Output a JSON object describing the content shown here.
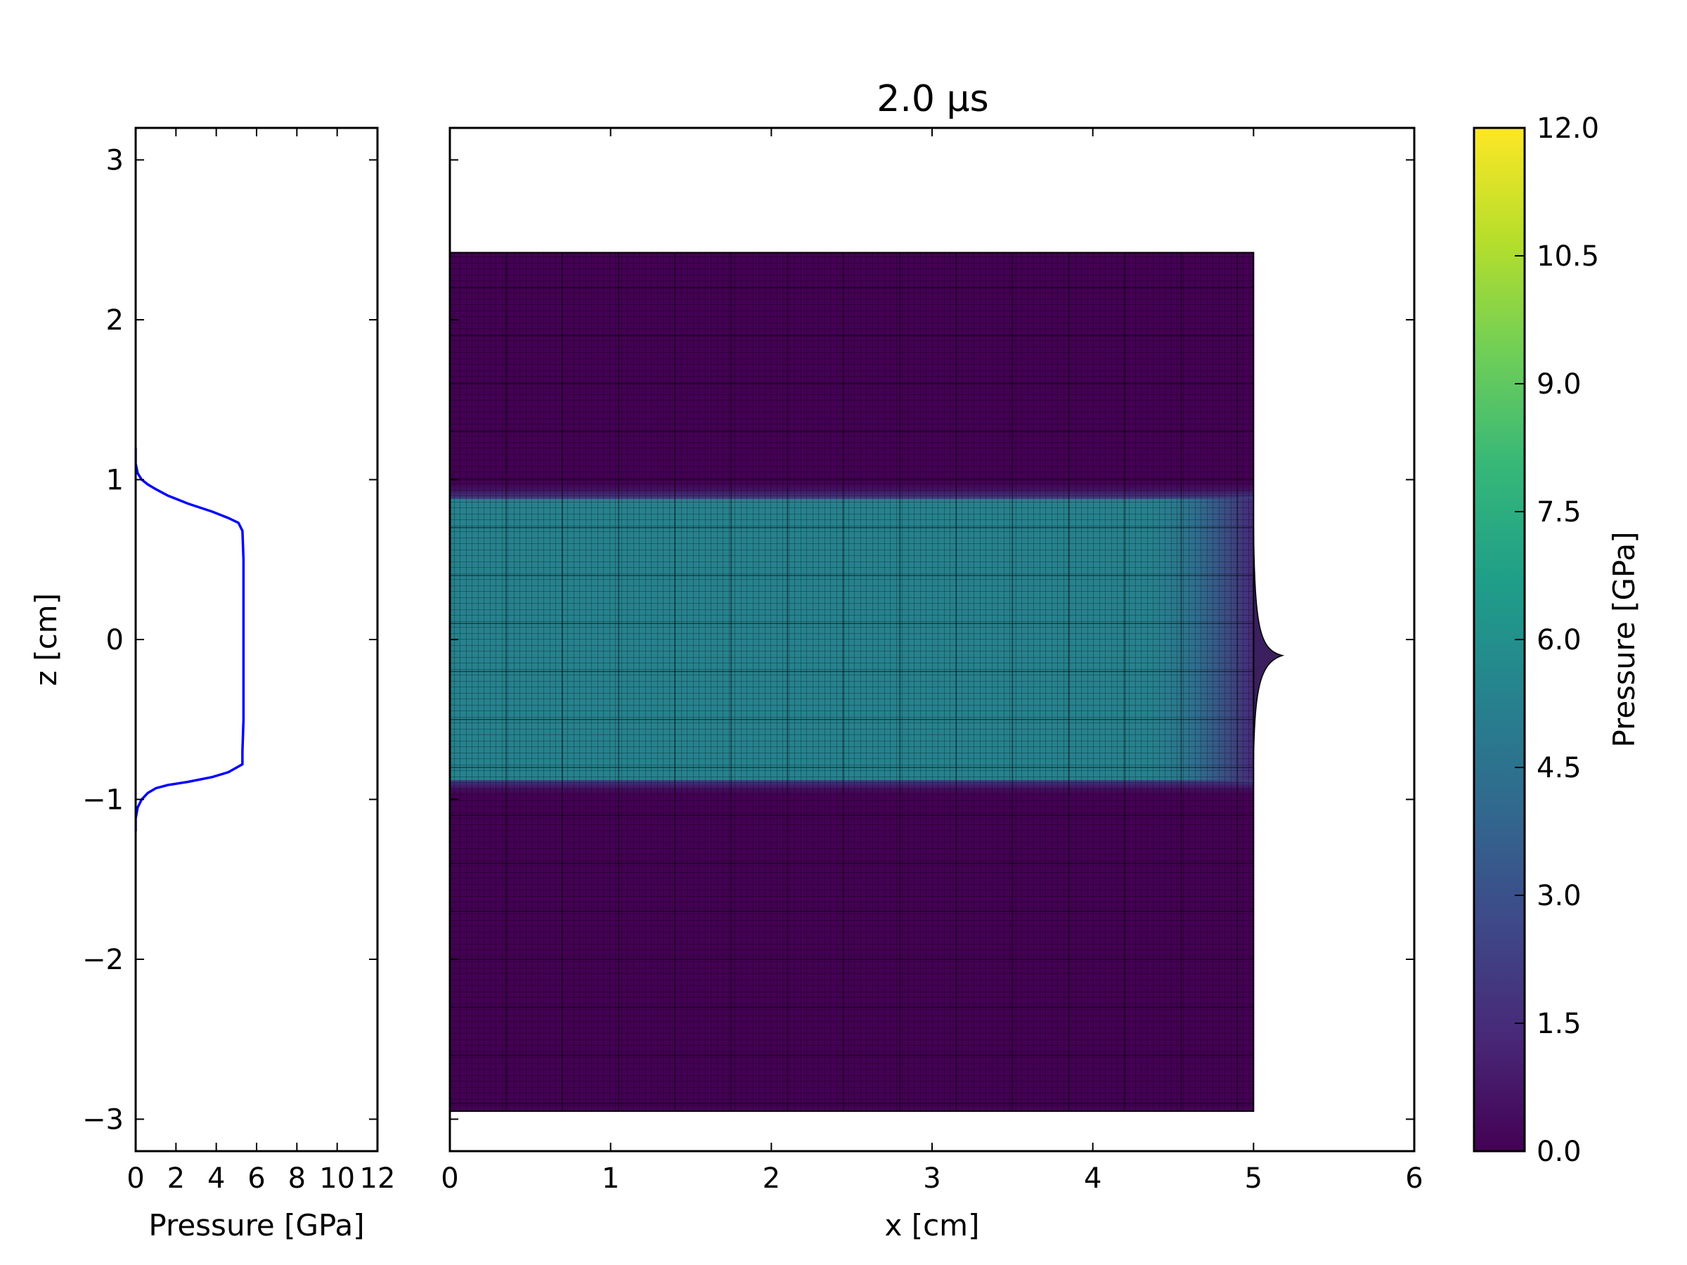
{
  "chart_data": [
    {
      "type": "line",
      "xlabel": "Pressure [GPa]",
      "ylabel": "z [cm]",
      "xlim": [
        0,
        12
      ],
      "ylim": [
        -3.2,
        3.2
      ],
      "xticks": [
        "0",
        "2",
        "4",
        "6",
        "8",
        "10",
        "12"
      ],
      "yticks": [
        "−3",
        "−2",
        "−1",
        "0",
        "1",
        "2",
        "3"
      ],
      "line_color": "#0000ff",
      "series": [
        {
          "x": [
            0.0,
            0.0,
            0.1,
            0.3,
            0.6,
            1.0,
            1.6,
            2.6,
            3.8,
            4.6,
            5.1,
            5.3,
            5.35,
            5.35,
            5.35,
            5.35,
            5.35,
            5.3,
            5.3,
            4.6,
            3.8,
            2.6,
            1.6,
            1.0,
            0.6,
            0.3,
            0.1,
            0.0,
            0.0
          ],
          "y": [
            1.2,
            1.1,
            1.04,
            1.0,
            0.97,
            0.94,
            0.9,
            0.85,
            0.8,
            0.76,
            0.73,
            0.68,
            0.5,
            0.2,
            0.0,
            -0.2,
            -0.5,
            -0.7,
            -0.78,
            -0.83,
            -0.86,
            -0.89,
            -0.91,
            -0.93,
            -0.96,
            -1.0,
            -1.05,
            -1.12,
            -1.2
          ]
        }
      ]
    },
    {
      "type": "heatmap",
      "title": "2.0 μs",
      "xlabel": "x [cm]",
      "ylabel": "",
      "xlim": [
        0,
        6
      ],
      "ylim": [
        -3.2,
        3.2
      ],
      "xticks": [
        "0",
        "1",
        "2",
        "3",
        "4",
        "5",
        "6"
      ],
      "mesh_extent": {
        "x": [
          0,
          5
        ],
        "z": [
          -2.95,
          2.42
        ]
      },
      "pressure_band": {
        "z_top": 0.88,
        "z_bottom": -0.88,
        "pressure_gpa": 5.3
      },
      "background_pressure_gpa": 0.0,
      "bulge_tip": {
        "x": 5.18,
        "z": -0.1
      },
      "colorbar": {
        "label": "Pressure [GPa]",
        "range": [
          0.0,
          12.0
        ],
        "ticks": [
          "0.0",
          "1.5",
          "3.0",
          "4.5",
          "6.0",
          "7.5",
          "9.0",
          "10.5",
          "12.0"
        ],
        "colormap": "viridis",
        "stops": [
          "#440154",
          "#482878",
          "#3e4989",
          "#31688e",
          "#26828e",
          "#1f9e89",
          "#35b779",
          "#6ece58",
          "#b5de2b",
          "#fde725"
        ]
      }
    }
  ]
}
